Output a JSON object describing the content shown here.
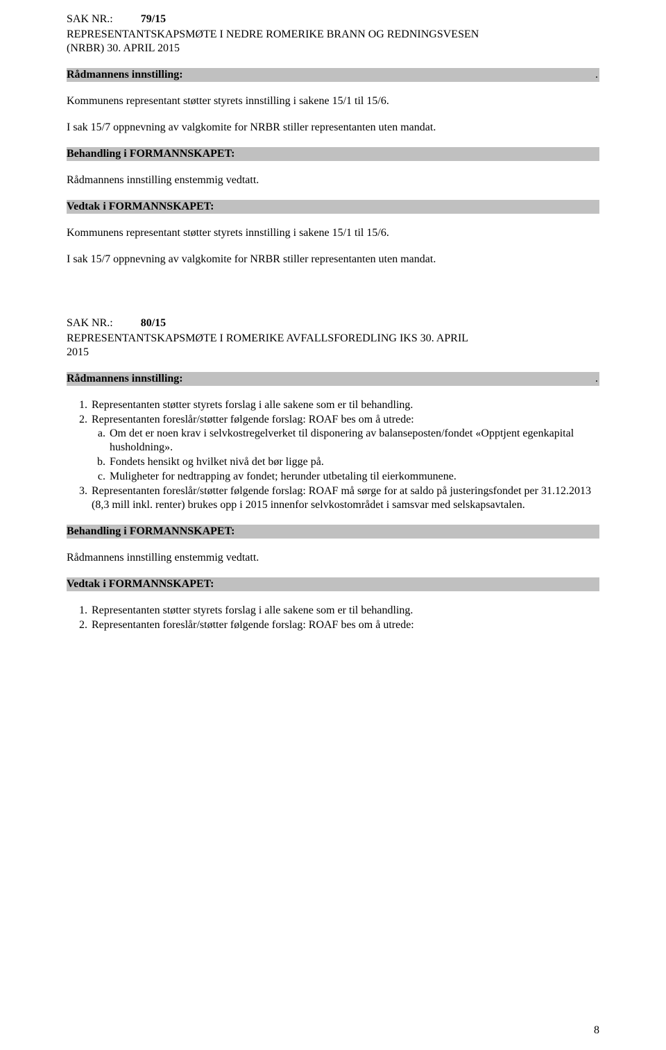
{
  "colors": {
    "background": "#ffffff",
    "text": "#000000",
    "bar_bg": "#c0c0c0"
  },
  "typography": {
    "font_family": "Times New Roman",
    "body_fontsize_pt": 12,
    "bold_weight": "bold"
  },
  "sak79": {
    "sak_label": "SAK NR.:",
    "sak_number": "79/15",
    "title_line1": "REPRESENTANTSKAPSMØTE I NEDRE ROMERIKE BRANN OG REDNINGSVESEN",
    "title_line2": "(NRBR) 30. APRIL 2015",
    "innstilling_label": "Rådmannens innstilling:",
    "dot": ".",
    "p1": "Kommunens representant støtter styrets innstilling i sakene 15/1 til 15/6.",
    "p2": "I sak 15/7 oppnevning av valgkomite for NRBR stiller representanten uten mandat.",
    "behandling_label": "Behandling i FORMANNSKAPET:",
    "behandling_text": "Rådmannens innstilling enstemmig vedtatt.",
    "vedtak_label": "Vedtak i FORMANNSKAPET:",
    "vedtak_p1": "Kommunens representant støtter styrets innstilling i sakene 15/1 til 15/6.",
    "vedtak_p2": "I sak 15/7 oppnevning av valgkomite for NRBR stiller representanten uten mandat."
  },
  "sak80": {
    "sak_label": "SAK NR.:",
    "sak_number": "80/15",
    "title_line1": "REPRESENTANTSKAPSMØTE I ROMERIKE AVFALLSFOREDLING IKS 30. APRIL",
    "title_line2": "2015",
    "innstilling_label": "Rådmannens innstilling:",
    "dot": ".",
    "list": {
      "item1": "Representanten støtter styrets forslag i alle sakene som er til behandling.",
      "item2_intro": "Representanten foreslår/støtter følgende forslag: ROAF bes om å utrede:",
      "item2a": "Om det er noen krav i selvkostregelverket til disponering av balanseposten/fondet «Opptjent egenkapital husholdning».",
      "item2b": "Fondets hensikt og hvilket nivå det bør ligge på.",
      "item2c": "Muligheter for nedtrapping av fondet; herunder utbetaling til eierkommunene.",
      "item3": "Representanten foreslår/støtter følgende forslag: ROAF må sørge for at saldo på justeringsfondet per 31.12.2013 (8,3 mill inkl. renter) brukes opp i 2015 innenfor selvkostområdet i samsvar med selskapsavtalen."
    },
    "behandling_label": "Behandling i FORMANNSKAPET:",
    "behandling_text": "Rådmannens innstilling enstemmig vedtatt.",
    "vedtak_label": "Vedtak i FORMANNSKAPET:",
    "vedtak_list": {
      "item1": "Representanten støtter styrets forslag i alle sakene som er til behandling.",
      "item2": "Representanten foreslår/støtter følgende forslag: ROAF bes om å utrede:"
    }
  },
  "page_number": "8"
}
